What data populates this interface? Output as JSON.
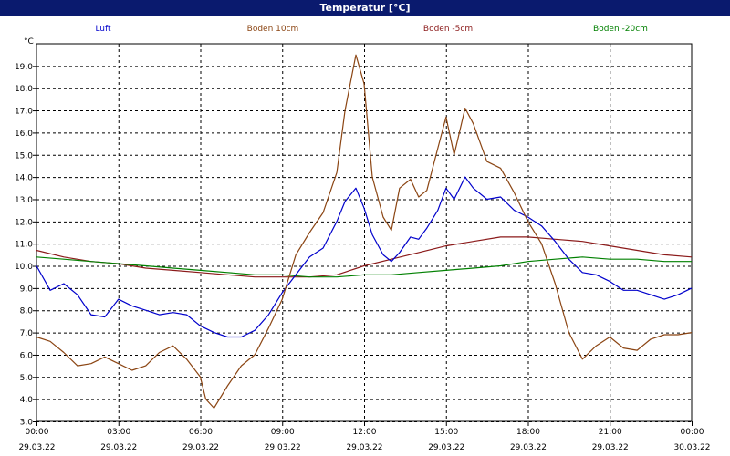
{
  "window": {
    "title": "Temperatur [°C]"
  },
  "chart_data": {
    "type": "line",
    "title": "Temperatur [°C]",
    "y_unit": "°C",
    "ylim": [
      3.0,
      20.0
    ],
    "y_ticks": [
      "3,0",
      "4,0",
      "5,0",
      "6,0",
      "7,0",
      "8,0",
      "9,0",
      "10,0",
      "11,0",
      "12,0",
      "13,0",
      "14,0",
      "15,0",
      "16,0",
      "17,0",
      "18,0",
      "19,0"
    ],
    "xlim": [
      0,
      24
    ],
    "x_ticks": [
      {
        "time": "00:00",
        "date": "29.03.22"
      },
      {
        "time": "03:00",
        "date": "29.03.22"
      },
      {
        "time": "06:00",
        "date": "29.03.22"
      },
      {
        "time": "09:00",
        "date": "29.03.22"
      },
      {
        "time": "12:00",
        "date": "29.03.22"
      },
      {
        "time": "15:00",
        "date": "29.03.22"
      },
      {
        "time": "18:00",
        "date": "29.03.22"
      },
      {
        "time": "21:00",
        "date": "29.03.22"
      },
      {
        "time": "00:00",
        "date": "30.03.22"
      }
    ],
    "grid": true,
    "legend_position": "top",
    "series": [
      {
        "name": "Luft",
        "color": "#0000cc",
        "x": [
          0,
          0.5,
          1,
          1.5,
          2,
          2.5,
          3,
          3.5,
          4,
          4.5,
          5,
          5.5,
          6,
          6.5,
          7,
          7.5,
          8,
          8.5,
          9,
          9.5,
          10,
          10.5,
          11,
          11.3,
          11.7,
          12,
          12.3,
          12.7,
          13,
          13.3,
          13.7,
          14,
          14.3,
          14.7,
          15,
          15.3,
          15.7,
          16,
          16.5,
          17,
          17.5,
          18,
          18.5,
          19,
          19.5,
          20,
          20.5,
          21,
          21.5,
          22,
          22.5,
          23,
          23.5,
          24
        ],
        "y": [
          10.0,
          8.9,
          9.2,
          8.7,
          7.8,
          7.7,
          8.5,
          8.2,
          8.0,
          7.8,
          7.9,
          7.8,
          7.3,
          7.0,
          6.8,
          6.8,
          7.1,
          7.8,
          8.8,
          9.6,
          10.4,
          10.8,
          12.0,
          12.9,
          13.5,
          12.6,
          11.4,
          10.5,
          10.2,
          10.6,
          11.3,
          11.2,
          11.7,
          12.5,
          13.5,
          13.0,
          14.0,
          13.5,
          13.0,
          13.1,
          12.5,
          12.2,
          11.8,
          11.1,
          10.3,
          9.7,
          9.6,
          9.3,
          8.9,
          8.9,
          8.7,
          8.5,
          8.7,
          9.0
        ]
      },
      {
        "name": "Boden 10cm",
        "color": "#8b4513",
        "x": [
          0,
          0.5,
          1,
          1.5,
          2,
          2.5,
          3,
          3.5,
          4,
          4.5,
          5,
          5.5,
          6,
          6.2,
          6.5,
          7,
          7.5,
          8,
          8.5,
          9,
          9.5,
          10,
          10.5,
          11,
          11.3,
          11.7,
          12,
          12.3,
          12.7,
          13,
          13.3,
          13.7,
          14,
          14.3,
          14.7,
          15,
          15.3,
          15.7,
          16,
          16.5,
          17,
          17.5,
          18,
          18.5,
          19,
          19.5,
          20,
          20.5,
          21,
          21.5,
          22,
          22.5,
          23,
          23.5,
          24
        ],
        "y": [
          6.8,
          6.6,
          6.1,
          5.5,
          5.6,
          5.9,
          5.6,
          5.3,
          5.5,
          6.1,
          6.4,
          5.8,
          5.0,
          4.0,
          3.6,
          4.6,
          5.5,
          6.0,
          7.2,
          8.5,
          10.5,
          11.5,
          12.4,
          14.2,
          17.0,
          19.5,
          18.2,
          14.0,
          12.2,
          11.6,
          13.5,
          13.9,
          13.1,
          13.4,
          15.3,
          16.7,
          15.0,
          17.1,
          16.4,
          14.7,
          14.4,
          13.3,
          12.0,
          11.0,
          9.2,
          7.0,
          5.8,
          6.4,
          6.8,
          6.3,
          6.2,
          6.7,
          6.9,
          6.9,
          7.0
        ]
      },
      {
        "name": "Boden -5cm",
        "color": "#8b1a1a",
        "x": [
          0,
          1,
          2,
          3,
          4,
          5,
          6,
          7,
          8,
          9,
          10,
          11,
          12,
          13,
          14,
          15,
          16,
          17,
          18,
          19,
          20,
          21,
          22,
          23,
          24
        ],
        "y": [
          10.7,
          10.4,
          10.2,
          10.1,
          9.9,
          9.8,
          9.7,
          9.6,
          9.5,
          9.5,
          9.5,
          9.6,
          10.0,
          10.3,
          10.6,
          10.9,
          11.1,
          11.3,
          11.3,
          11.2,
          11.1,
          10.9,
          10.7,
          10.5,
          10.4
        ]
      },
      {
        "name": "Boden -20cm",
        "color": "#008000",
        "x": [
          0,
          1,
          2,
          3,
          4,
          5,
          6,
          7,
          8,
          9,
          10,
          11,
          12,
          13,
          14,
          15,
          16,
          17,
          18,
          19,
          20,
          21,
          22,
          23,
          24
        ],
        "y": [
          10.4,
          10.3,
          10.2,
          10.1,
          10.0,
          9.9,
          9.8,
          9.7,
          9.6,
          9.6,
          9.5,
          9.5,
          9.6,
          9.6,
          9.7,
          9.8,
          9.9,
          10.0,
          10.2,
          10.3,
          10.4,
          10.3,
          10.3,
          10.2,
          10.2
        ]
      }
    ]
  }
}
